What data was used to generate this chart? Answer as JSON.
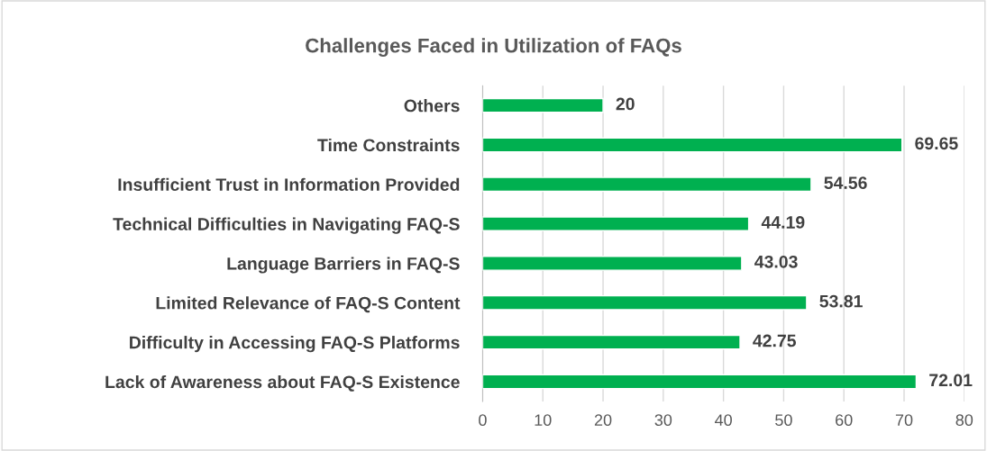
{
  "chart_data": {
    "type": "bar",
    "orientation": "horizontal",
    "title": "Challenges Faced in Utilization of FAQs",
    "categories": [
      "Others",
      "Time Constraints",
      "Insufficient Trust in Information Provided",
      "Technical Difficulties in Navigating FAQ-S",
      "Language Barriers in FAQ-S",
      "Limited Relevance of FAQ-S Content",
      "Difficulty in Accessing FAQ-S Platforms",
      "Lack of Awareness about FAQ-S Existence"
    ],
    "values": [
      20,
      69.65,
      54.56,
      44.19,
      43.03,
      53.81,
      42.75,
      72.01
    ],
    "color": "#00b050",
    "xlim": [
      0,
      80
    ],
    "xticks": [
      0,
      10,
      20,
      30,
      40,
      50,
      60,
      70,
      80
    ],
    "grid": "x",
    "data_labels": true,
    "legend": false
  }
}
